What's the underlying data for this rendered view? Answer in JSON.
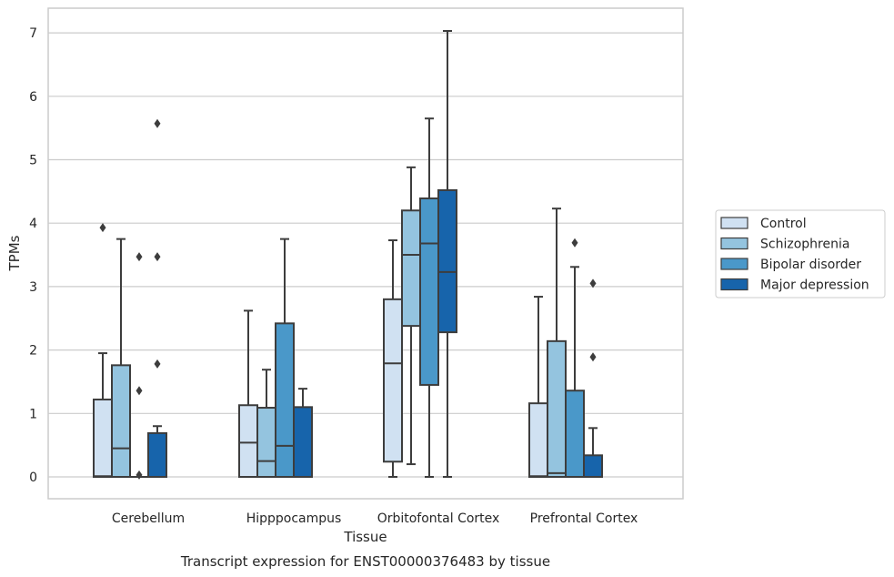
{
  "chart_data": {
    "type": "box",
    "title": "Transcript expression for ENST00000376483 by tissue",
    "xlabel": "Tissue",
    "ylabel": "TPMs",
    "ylim": [
      -0.35,
      7.4
    ],
    "yticks": [
      0,
      1,
      2,
      3,
      4,
      5,
      6,
      7
    ],
    "grid": "horizontal",
    "legend_position": "right",
    "categories": [
      "Cerebellum",
      "Hipppocampus",
      "Orbitofontal Cortex",
      "Prefrontal Cortex"
    ],
    "series": [
      {
        "name": "Control",
        "color": "#d0e1f2",
        "boxes": [
          {
            "whislo": 0,
            "q1": 0,
            "med": 0.01,
            "q3": 1.22,
            "whishi": 1.95,
            "fliers": [
              3.93
            ]
          },
          {
            "whislo": 0,
            "q1": 0,
            "med": 0.54,
            "q3": 1.13,
            "whishi": 2.62,
            "fliers": []
          },
          {
            "whislo": 0,
            "q1": 0.24,
            "med": 1.79,
            "q3": 2.8,
            "whishi": 3.73,
            "fliers": []
          },
          {
            "whislo": 0,
            "q1": 0,
            "med": 0.01,
            "q3": 1.16,
            "whishi": 2.84,
            "fliers": []
          }
        ]
      },
      {
        "name": "Schizophrenia",
        "color": "#94c4df",
        "boxes": [
          {
            "whislo": 0,
            "q1": 0,
            "med": 0.45,
            "q3": 1.76,
            "whishi": 3.75,
            "fliers": []
          },
          {
            "whislo": 0,
            "q1": 0,
            "med": 0.25,
            "q3": 1.09,
            "whishi": 1.69,
            "fliers": []
          },
          {
            "whislo": 0.2,
            "q1": 2.38,
            "med": 3.5,
            "q3": 4.2,
            "whishi": 4.88,
            "fliers": []
          },
          {
            "whislo": 0,
            "q1": 0,
            "med": 0.06,
            "q3": 2.14,
            "whishi": 4.23,
            "fliers": []
          }
        ]
      },
      {
        "name": "Bipolar disorder",
        "color": "#4a98c9",
        "boxes": [
          {
            "whislo": 0,
            "q1": 0,
            "med": 0,
            "q3": 0,
            "whishi": 0,
            "fliers": [
              0.03,
              1.36,
              3.47
            ]
          },
          {
            "whislo": 0,
            "q1": 0,
            "med": 0.49,
            "q3": 2.42,
            "whishi": 3.75,
            "fliers": []
          },
          {
            "whislo": 0,
            "q1": 1.45,
            "med": 3.68,
            "q3": 4.39,
            "whishi": 5.65,
            "fliers": []
          },
          {
            "whislo": 0,
            "q1": 0,
            "med": 0,
            "q3": 1.36,
            "whishi": 3.31,
            "fliers": [
              3.69
            ]
          }
        ]
      },
      {
        "name": "Major depression",
        "color": "#1764ab",
        "boxes": [
          {
            "whislo": 0,
            "q1": 0,
            "med": 0,
            "q3": 0.69,
            "whishi": 0.8,
            "fliers": [
              1.78,
              3.47,
              5.57
            ]
          },
          {
            "whislo": 0,
            "q1": 0,
            "med": 0,
            "q3": 1.1,
            "whishi": 1.39,
            "fliers": []
          },
          {
            "whislo": 0,
            "q1": 2.28,
            "med": 3.23,
            "q3": 4.52,
            "whishi": 7.03,
            "fliers": []
          },
          {
            "whislo": 0,
            "q1": 0,
            "med": 0,
            "q3": 0.34,
            "whishi": 0.77,
            "fliers": [
              1.89,
              3.05
            ]
          }
        ]
      }
    ]
  }
}
